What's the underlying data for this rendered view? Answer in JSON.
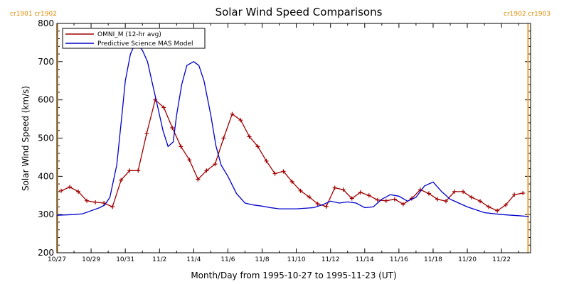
{
  "chart_data": {
    "type": "line",
    "title": "Solar Wind Speed Comparisons",
    "xlabel": "Month/Day from 1995-10-27 to 1995-11-23 (UT)",
    "ylabel": "Solar Wind Speed (km/s)",
    "ylim": [
      200,
      800
    ],
    "yticks": [
      200,
      300,
      400,
      500,
      600,
      700,
      800
    ],
    "xlim": [
      0,
      27.7
    ],
    "xticks": [
      {
        "x": 0,
        "label": "10/27"
      },
      {
        "x": 2,
        "label": "10/29"
      },
      {
        "x": 4,
        "label": "10/31"
      },
      {
        "x": 6,
        "label": "11/2"
      },
      {
        "x": 8,
        "label": "11/4"
      },
      {
        "x": 10,
        "label": "11/6"
      },
      {
        "x": 12,
        "label": "11/8"
      },
      {
        "x": 14,
        "label": "11/10"
      },
      {
        "x": 16,
        "label": "11/12"
      },
      {
        "x": 18,
        "label": "11/14"
      },
      {
        "x": 20,
        "label": "11/16"
      },
      {
        "x": 22,
        "label": "11/18"
      },
      {
        "x": 24,
        "label": "11/20"
      },
      {
        "x": 26,
        "label": "11/22"
      }
    ],
    "grid": false,
    "legend_position": "top-left",
    "carrington_markers": [
      {
        "x": 0,
        "label": "cr1901 cr1902",
        "color": "#f0a030"
      },
      {
        "x": 27.55,
        "label": "cr1902 cr1903",
        "color": "#f0a030"
      }
    ],
    "series": [
      {
        "name": "OMNI_M (12-hr avg)",
        "color": "#a00000",
        "marker": "plus",
        "x": [
          0.25,
          0.75,
          1.25,
          1.75,
          2.25,
          2.75,
          3.25,
          3.75,
          4.25,
          4.75,
          5.25,
          5.75,
          6.25,
          6.75,
          7.25,
          7.75,
          8.25,
          8.75,
          9.25,
          9.75,
          10.25,
          10.75,
          11.25,
          11.75,
          12.25,
          12.75,
          13.25,
          13.75,
          14.25,
          14.75,
          15.25,
          15.75,
          16.25,
          16.75,
          17.25,
          17.75,
          18.25,
          18.75,
          19.25,
          19.75,
          20.25,
          20.75,
          21.25,
          21.75,
          22.25,
          22.75,
          23.25,
          23.75,
          24.25,
          24.75,
          25.25,
          25.75,
          26.25,
          26.75,
          27.25
        ],
        "y": [
          362,
          372,
          360,
          336,
          332,
          330,
          320,
          390,
          415,
          415,
          512,
          600,
          580,
          527,
          478,
          443,
          392,
          415,
          432,
          500,
          563,
          547,
          504,
          478,
          440,
          407,
          413,
          386,
          362,
          346,
          328,
          321,
          370,
          365,
          342,
          358,
          350,
          338,
          336,
          340,
          327,
          342,
          365,
          355,
          340,
          335,
          360,
          360,
          345,
          335,
          320,
          310,
          325,
          352,
          356
        ]
      },
      {
        "name": "Predictive Science MAS Model",
        "color": "#0000cc",
        "marker": "none",
        "x": [
          0,
          1,
          1.5,
          2,
          2.5,
          2.8,
          3.1,
          3.5,
          3.8,
          4,
          4.3,
          4.5,
          4.8,
          5,
          5.3,
          5.6,
          5.9,
          6.2,
          6.5,
          6.8,
          7,
          7.3,
          7.6,
          8,
          8.3,
          8.6,
          9,
          9.3,
          9.6,
          10,
          10.5,
          11,
          11.5,
          12,
          12.5,
          13,
          14,
          15,
          15.5,
          16,
          16.5,
          17,
          17.5,
          18,
          18.5,
          19,
          19.5,
          20,
          20.5,
          21,
          21.5,
          22,
          22.5,
          23,
          23.5,
          24,
          25,
          26,
          27,
          27.6
        ],
        "y": [
          298,
          300,
          302,
          310,
          318,
          325,
          345,
          430,
          560,
          650,
          720,
          740,
          740,
          730,
          700,
          640,
          580,
          520,
          478,
          490,
          560,
          640,
          690,
          700,
          690,
          650,
          560,
          480,
          430,
          400,
          355,
          330,
          325,
          322,
          318,
          315,
          315,
          318,
          325,
          335,
          330,
          333,
          330,
          318,
          320,
          340,
          352,
          348,
          335,
          345,
          375,
          385,
          360,
          340,
          330,
          320,
          305,
          300,
          297,
          295
        ]
      }
    ]
  }
}
